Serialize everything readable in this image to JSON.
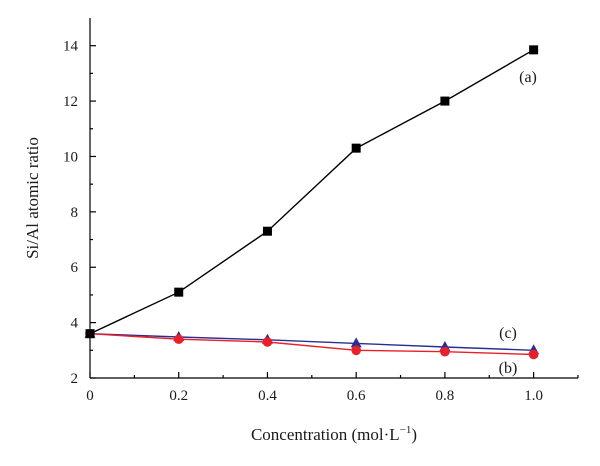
{
  "chart_data": {
    "type": "line",
    "title": "",
    "xlabel_main": "Concentration (mol·L",
    "xlabel_sup": "−1",
    "xlabel_close": ")",
    "ylabel": "Si/Al atomic ratio",
    "xlim": [
      0,
      1.1
    ],
    "ylim": [
      2,
      15
    ],
    "x_ticks": [
      "0",
      "0.2",
      "0.4",
      "0.6",
      "0.8",
      "1.0"
    ],
    "x_tick_values": [
      0,
      0.2,
      0.4,
      0.6,
      0.8,
      1.0
    ],
    "y_ticks": [
      "2",
      "4",
      "6",
      "8",
      "10",
      "12",
      "14"
    ],
    "y_tick_values": [
      2,
      4,
      6,
      8,
      10,
      12,
      14
    ],
    "x": [
      0,
      0.2,
      0.4,
      0.6,
      0.8,
      1.0
    ],
    "series": [
      {
        "name": "(a)",
        "marker": "square",
        "color": "#000000",
        "values": [
          3.6,
          5.1,
          7.3,
          10.3,
          12.0,
          13.85
        ]
      },
      {
        "name": "(b)",
        "marker": "circle",
        "color": "#e8202a",
        "line_color": "#e8202a",
        "values": [
          3.6,
          3.4,
          3.3,
          3.0,
          2.95,
          2.85
        ]
      },
      {
        "name": "(c)",
        "marker": "triangle",
        "color": "#2a2f8f",
        "line_color": "#2a2f8f",
        "values": [
          3.6,
          3.48,
          3.38,
          3.25,
          3.12,
          3.0
        ]
      }
    ],
    "grid": false,
    "legend": "inline-labels"
  }
}
